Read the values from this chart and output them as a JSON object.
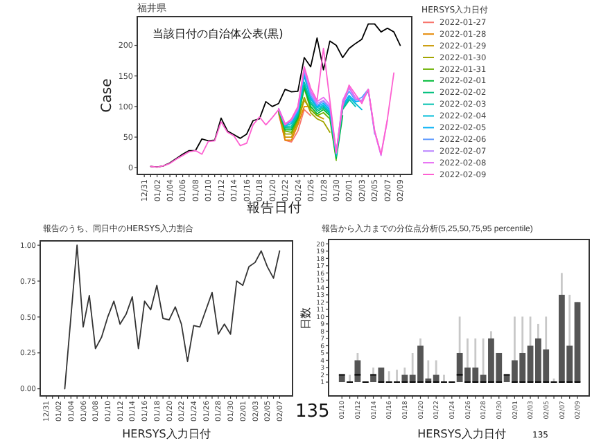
{
  "chart_data": [
    {
      "type": "line",
      "title": "福井県",
      "xlabel": "報告日付",
      "ylabel": "Case",
      "legend_title": "HERSYS入力日付",
      "legend": "right",
      "annotations": [
        "当該日付の自治体公表(黒)"
      ],
      "categories": [
        "12/31",
        null,
        "01/02",
        null,
        "01/04",
        null,
        "01/06",
        null,
        "01/08",
        null,
        "01/10",
        null,
        "01/12",
        null,
        "01/14",
        null,
        "01/16",
        null,
        "01/18",
        null,
        "01/20",
        null,
        "01/22",
        null,
        "01/24",
        null,
        "01/26",
        null,
        "01/28",
        null,
        "01/30",
        null,
        "02/01",
        null,
        "02/03",
        null,
        "02/05",
        null,
        "02/07",
        null,
        "02/09"
      ],
      "ylim": [
        -11,
        247
      ],
      "yticks": [
        0,
        50,
        100,
        150,
        200
      ],
      "series": [
        {
          "color": "#000000",
          "values": [
            null,
            2,
            1,
            3,
            8,
            15,
            22,
            28,
            28,
            47,
            44,
            45,
            81,
            60,
            54,
            48,
            55,
            77,
            80,
            108,
            100,
            105,
            128,
            124,
            125,
            180,
            165,
            212,
            160,
            207,
            200,
            180,
            195,
            203,
            210,
            235,
            235,
            222,
            228,
            222,
            200
          ]
        },
        {
          "name": "2022-01-27",
          "color": "#f8766d",
          "values": [
            null,
            null,
            null,
            null,
            null,
            null,
            null,
            null,
            null,
            null,
            null,
            null,
            null,
            null,
            null,
            null,
            null,
            null,
            null,
            null,
            null,
            88,
            45,
            42,
            60,
            95,
            85,
            null,
            null,
            null,
            null,
            null,
            null,
            null,
            null,
            null,
            null,
            null,
            null,
            null,
            null
          ]
        },
        {
          "name": "2022-01-28",
          "color": "#e58700",
          "values": [
            null,
            null,
            null,
            null,
            null,
            null,
            null,
            null,
            null,
            null,
            null,
            null,
            null,
            null,
            null,
            null,
            null,
            null,
            null,
            null,
            null,
            90,
            45,
            45,
            70,
            100,
            100,
            88,
            null,
            null,
            null,
            null,
            null,
            null,
            null,
            null,
            null,
            null,
            null,
            null,
            null
          ]
        },
        {
          "name": "2022-01-29",
          "color": "#c99800",
          "values": [
            null,
            null,
            null,
            null,
            null,
            null,
            null,
            null,
            null,
            null,
            null,
            null,
            null,
            null,
            null,
            null,
            null,
            null,
            null,
            null,
            null,
            92,
            50,
            50,
            75,
            110,
            95,
            85,
            80,
            null,
            null,
            null,
            null,
            null,
            null,
            null,
            null,
            null,
            null,
            null,
            null
          ]
        },
        {
          "name": "2022-01-30",
          "color": "#a3a500",
          "values": [
            null,
            null,
            null,
            null,
            null,
            null,
            null,
            null,
            null,
            null,
            null,
            null,
            null,
            null,
            null,
            null,
            null,
            null,
            null,
            null,
            null,
            92,
            55,
            55,
            78,
            115,
            90,
            80,
            75,
            58,
            null,
            null,
            null,
            null,
            null,
            null,
            null,
            null,
            null,
            null,
            null
          ]
        },
        {
          "name": "2022-01-31",
          "color": "#6bb100",
          "values": [
            null,
            null,
            null,
            null,
            null,
            null,
            null,
            null,
            null,
            null,
            null,
            null,
            null,
            null,
            null,
            null,
            null,
            null,
            null,
            null,
            null,
            93,
            60,
            58,
            80,
            130,
            95,
            85,
            90,
            80,
            12,
            null,
            null,
            null,
            null,
            null,
            null,
            null,
            null,
            null,
            null
          ]
        },
        {
          "name": "2022-02-01",
          "color": "#00ba38",
          "values": [
            null,
            null,
            null,
            null,
            null,
            null,
            null,
            null,
            null,
            null,
            null,
            null,
            null,
            null,
            null,
            null,
            null,
            null,
            null,
            null,
            null,
            93,
            62,
            62,
            82,
            132,
            100,
            88,
            95,
            85,
            15,
            85,
            null,
            null,
            null,
            null,
            null,
            null,
            null,
            null,
            null
          ]
        },
        {
          "name": "2022-02-02",
          "color": "#00bf7d",
          "values": [
            null,
            null,
            null,
            null,
            null,
            null,
            null,
            null,
            null,
            null,
            null,
            null,
            null,
            null,
            null,
            null,
            null,
            null,
            null,
            null,
            null,
            94,
            65,
            65,
            85,
            135,
            105,
            92,
            98,
            88,
            18,
            95,
            110,
            null,
            null,
            null,
            null,
            null,
            null,
            null,
            null
          ]
        },
        {
          "name": "2022-02-03",
          "color": "#00c0af",
          "values": [
            null,
            null,
            null,
            null,
            null,
            null,
            null,
            null,
            null,
            null,
            null,
            null,
            null,
            null,
            null,
            null,
            null,
            null,
            null,
            null,
            null,
            94,
            67,
            68,
            88,
            140,
            108,
            95,
            100,
            90,
            20,
            98,
            112,
            100,
            null,
            null,
            null,
            null,
            null,
            null,
            null
          ]
        },
        {
          "name": "2022-02-04",
          "color": "#00bcd8",
          "values": [
            null,
            null,
            null,
            null,
            null,
            null,
            null,
            null,
            null,
            null,
            null,
            null,
            null,
            null,
            null,
            null,
            null,
            null,
            null,
            null,
            null,
            95,
            68,
            72,
            90,
            150,
            112,
            98,
            102,
            92,
            22,
            100,
            115,
            105,
            95,
            null,
            null,
            null,
            null,
            null,
            null
          ]
        },
        {
          "name": "2022-02-05",
          "color": "#00b0f6",
          "values": [
            null,
            null,
            null,
            null,
            null,
            null,
            null,
            null,
            null,
            null,
            null,
            null,
            null,
            null,
            null,
            null,
            null,
            null,
            null,
            null,
            null,
            95,
            70,
            75,
            92,
            155,
            115,
            100,
            105,
            95,
            22,
            102,
            118,
            108,
            110,
            125,
            null,
            null,
            null,
            null,
            null
          ]
        },
        {
          "name": "2022-02-06",
          "color": "#619cff",
          "values": [
            null,
            null,
            null,
            null,
            null,
            null,
            null,
            null,
            null,
            null,
            null,
            null,
            null,
            null,
            null,
            null,
            null,
            null,
            null,
            null,
            null,
            96,
            70,
            76,
            94,
            158,
            118,
            102,
            108,
            98,
            23,
            105,
            125,
            110,
            115,
            128,
            55,
            null,
            null,
            null,
            null
          ]
        },
        {
          "name": "2022-02-07",
          "color": "#b983ff",
          "values": [
            null,
            null,
            null,
            null,
            null,
            null,
            null,
            null,
            null,
            null,
            null,
            null,
            null,
            null,
            null,
            null,
            null,
            null,
            null,
            null,
            null,
            96,
            72,
            78,
            96,
            160,
            122,
            105,
            110,
            100,
            24,
            108,
            130,
            112,
            110,
            128,
            58,
            20,
            null,
            null,
            null
          ]
        },
        {
          "name": "2022-02-08",
          "color": "#e76bf3",
          "values": [
            null,
            null,
            null,
            null,
            null,
            null,
            null,
            null,
            null,
            null,
            null,
            null,
            null,
            null,
            null,
            null,
            null,
            null,
            null,
            null,
            null,
            97,
            72,
            78,
            98,
            163,
            125,
            108,
            115,
            103,
            24,
            110,
            132,
            115,
            108,
            128,
            60,
            21,
            78,
            null,
            null
          ]
        },
        {
          "name": "2022-02-09",
          "color": "#fd61d1",
          "values": [
            null,
            2,
            1,
            3,
            7,
            14,
            20,
            26,
            28,
            22,
            43,
            44,
            75,
            58,
            52,
            36,
            40,
            70,
            83,
            70,
            82,
            95,
            70,
            80,
            100,
            165,
            130,
            110,
            195,
            110,
            25,
            100,
            135,
            120,
            105,
            128,
            60,
            22,
            80,
            155,
            null
          ]
        }
      ]
    },
    {
      "type": "line",
      "title": "報告のうち、同日中のHERSYS入力割合",
      "xlabel": "HERSYS入力日付",
      "annotations": [
        "135"
      ],
      "categories": [
        "12/31",
        null,
        "01/02",
        null,
        "01/04",
        null,
        "01/06",
        null,
        "01/08",
        null,
        "01/10",
        null,
        "01/12",
        null,
        "01/14",
        null,
        "01/16",
        null,
        "01/18",
        null,
        "01/20",
        null,
        "01/22",
        null,
        "01/24",
        null,
        "01/26",
        null,
        "01/28",
        null,
        "01/30",
        null,
        "02/01",
        null,
        "02/03",
        null,
        "02/05",
        null,
        "02/07"
      ],
      "ylim": [
        -0.05,
        1.03
      ],
      "yticks": [
        {
          "value": 0,
          "label": "0.00"
        },
        {
          "value": 0.25,
          "label": "0.25"
        },
        {
          "value": 0.5,
          "label": "0.50"
        },
        {
          "value": 0.75,
          "label": "0.75"
        },
        {
          "value": 1,
          "label": "1.00"
        }
      ],
      "series": [
        {
          "color": "#333333",
          "values": [
            null,
            null,
            null,
            0,
            0.5,
            1,
            0.43,
            0.65,
            0.28,
            0.36,
            0.5,
            0.61,
            0.45,
            0.52,
            0.64,
            0.28,
            0.61,
            0.55,
            0.72,
            0.49,
            0.48,
            0.57,
            0.45,
            0.19,
            0.44,
            0.43,
            0.55,
            0.67,
            0.38,
            0.45,
            0.38,
            0.75,
            0.72,
            0.85,
            0.88,
            0.96,
            0.85,
            0.77,
            0.96
          ]
        }
      ]
    },
    {
      "type": "box",
      "title": "報告から入力までの分位点分析(5,25,50,75,95 percentile)",
      "xlabel": "HERSYS入力日付",
      "ylabel": "日数",
      "annotations": [
        "135"
      ],
      "categories": [
        "01/10",
        null,
        "01/12",
        null,
        "01/14",
        null,
        "01/16",
        null,
        "01/18",
        null,
        "01/20",
        null,
        "01/22",
        null,
        "01/24",
        null,
        "01/26",
        null,
        "01/28",
        null,
        "01/30",
        null,
        "02/01",
        null,
        "02/03",
        null,
        "02/05",
        null,
        "02/07",
        null,
        "02/09"
      ],
      "ylim": [
        -0.9,
        20.6
      ],
      "yticks": [
        1,
        2,
        3,
        4,
        5,
        6,
        7,
        8,
        9,
        10,
        11,
        12,
        13,
        14,
        15,
        16,
        17,
        18,
        19,
        20
      ],
      "boxes": [
        {
          "low": 1,
          "q1": 1,
          "median": 2,
          "q3": 2,
          "high": 2
        },
        {
          "low": 1,
          "q1": 1,
          "median": 1,
          "q3": 1,
          "high": 2
        },
        {
          "low": 1,
          "q1": 1,
          "median": 2,
          "q3": 4,
          "high": 5
        },
        {
          "low": 1,
          "q1": 1,
          "median": 1,
          "q3": 1,
          "high": 1
        },
        {
          "low": 1,
          "q1": 1,
          "median": 2,
          "q3": 2,
          "high": 3
        },
        {
          "low": 1,
          "q1": 1,
          "median": 1,
          "q3": 3,
          "high": 3
        },
        {
          "low": 1,
          "q1": 1,
          "median": 1,
          "q3": 1,
          "high": 2.5
        },
        {
          "low": 1,
          "q1": 1,
          "median": 1,
          "q3": 1,
          "high": 2.7
        },
        {
          "low": 1,
          "q1": 1,
          "median": 1,
          "q3": 2,
          "high": 3
        },
        {
          "low": 1,
          "q1": 1,
          "median": 1,
          "q3": 2,
          "high": 5
        },
        {
          "low": 1,
          "q1": 1,
          "median": 1,
          "q3": 6,
          "high": 7
        },
        {
          "low": 1,
          "q1": 1,
          "median": 1,
          "q3": 1.5,
          "high": 4
        },
        {
          "low": 1,
          "q1": 1,
          "median": 1,
          "q3": 2,
          "high": 4
        },
        {
          "low": 1,
          "q1": 1,
          "median": 1,
          "q3": 1,
          "high": 2
        },
        {
          "low": 1,
          "q1": 1,
          "median": 1,
          "q3": 1,
          "high": 1
        },
        {
          "low": 1,
          "q1": 1,
          "median": 2,
          "q3": 5,
          "high": 10
        },
        {
          "low": 1,
          "q1": 1,
          "median": 1,
          "q3": 3,
          "high": 7
        },
        {
          "low": 1,
          "q1": 1,
          "median": 1,
          "q3": 3,
          "high": 7
        },
        {
          "low": 1,
          "q1": 1,
          "median": 1,
          "q3": 2,
          "high": 7
        },
        {
          "low": 1,
          "q1": 1,
          "median": 1,
          "q3": 7,
          "high": 8
        },
        {
          "low": 1,
          "q1": 1,
          "median": 1,
          "q3": 5,
          "high": 5
        },
        {
          "low": 1,
          "q1": 1,
          "median": 2,
          "q3": 2,
          "high": 2
        },
        {
          "low": 1,
          "q1": 1,
          "median": 1,
          "q3": 4,
          "high": 10
        },
        {
          "low": 1,
          "q1": 1,
          "median": 1,
          "q3": 5,
          "high": 10
        },
        {
          "low": 1,
          "q1": 1,
          "median": 1,
          "q3": 6,
          "high": 10
        },
        {
          "low": 1,
          "q1": 1,
          "median": 1,
          "q3": 7,
          "high": 9
        },
        {
          "low": 1,
          "q1": 1,
          "median": 1,
          "q3": 5.5,
          "high": 10
        },
        {
          "low": 1,
          "q1": 1,
          "median": 1,
          "q3": 1,
          "high": 1.5
        },
        {
          "low": 1,
          "q1": 1,
          "median": 1,
          "q3": 13,
          "high": 16
        },
        {
          "low": 1,
          "q1": 1,
          "median": 1,
          "q3": 6,
          "high": 13
        },
        {
          "low": 1,
          "q1": 1,
          "median": 1,
          "q3": 12,
          "high": 12
        }
      ]
    }
  ]
}
